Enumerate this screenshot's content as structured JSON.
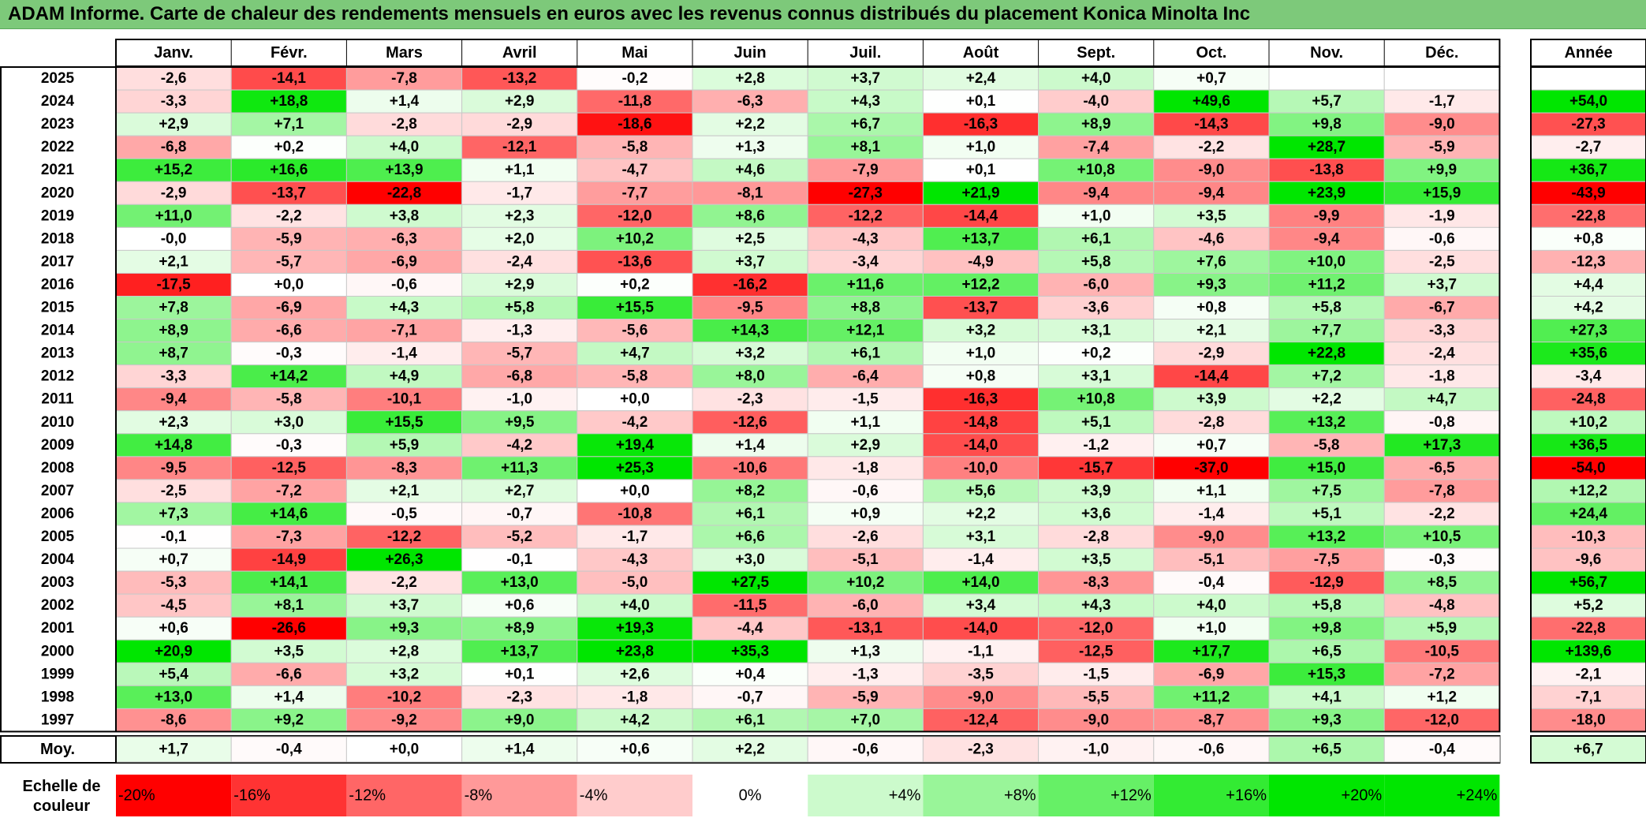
{
  "title": "ADAM Informe. Carte de chaleur des rendements mensuels en euros avec les revenus connus distribués du placement Konica Minolta Inc",
  "chart_data": {
    "type": "heatmap",
    "title": "ADAM Informe. Carte de chaleur des rendements mensuels en euros avec les revenus connus distribués du placement Konica Minolta Inc",
    "months": [
      "Janv.",
      "Févr.",
      "Mars",
      "Avril",
      "Mai",
      "Juin",
      "Juil.",
      "Août",
      "Sept.",
      "Oct.",
      "Nov.",
      "Déc."
    ],
    "year_header": "Année",
    "average_label": "Moy.",
    "rows": [
      {
        "year": "2025",
        "values": [
          "-2,6",
          "-14,1",
          "-7,8",
          "-13,2",
          "-0,2",
          "+2,8",
          "+3,7",
          "+2,4",
          "+4,0",
          "+0,7",
          "",
          ""
        ],
        "annual": ""
      },
      {
        "year": "2024",
        "values": [
          "-3,3",
          "+18,8",
          "+1,4",
          "+2,9",
          "-11,8",
          "-6,3",
          "+4,3",
          "+0,1",
          "-4,0",
          "+49,6",
          "+5,7",
          "-1,7"
        ],
        "annual": "+54,0"
      },
      {
        "year": "2023",
        "values": [
          "+2,9",
          "+7,1",
          "-2,8",
          "-2,9",
          "-18,6",
          "+2,2",
          "+6,7",
          "-16,3",
          "+8,9",
          "-14,3",
          "+9,8",
          "-9,0"
        ],
        "annual": "-27,3"
      },
      {
        "year": "2022",
        "values": [
          "-6,8",
          "+0,2",
          "+4,0",
          "-12,1",
          "-5,8",
          "+1,3",
          "+8,1",
          "+1,0",
          "-7,4",
          "-2,2",
          "+28,7",
          "-5,9"
        ],
        "annual": "-2,7"
      },
      {
        "year": "2021",
        "values": [
          "+15,2",
          "+16,6",
          "+13,9",
          "+1,1",
          "-4,7",
          "+4,6",
          "-7,9",
          "+0,1",
          "+10,8",
          "-9,0",
          "-13,8",
          "+9,9"
        ],
        "annual": "+36,7"
      },
      {
        "year": "2020",
        "values": [
          "-2,9",
          "-13,7",
          "-22,8",
          "-1,7",
          "-7,7",
          "-8,1",
          "-27,3",
          "+21,9",
          "-9,4",
          "-9,4",
          "+23,9",
          "+15,9"
        ],
        "annual": "-43,9"
      },
      {
        "year": "2019",
        "values": [
          "+11,0",
          "-2,2",
          "+3,8",
          "+2,3",
          "-12,0",
          "+8,6",
          "-12,2",
          "-14,4",
          "+1,0",
          "+3,5",
          "-9,9",
          "-1,9"
        ],
        "annual": "-22,8"
      },
      {
        "year": "2018",
        "values": [
          "-0,0",
          "-5,9",
          "-6,3",
          "+2,0",
          "+10,2",
          "+2,5",
          "-4,3",
          "+13,7",
          "+6,1",
          "-4,6",
          "-9,4",
          "-0,6"
        ],
        "annual": "+0,8"
      },
      {
        "year": "2017",
        "values": [
          "+2,1",
          "-5,7",
          "-6,9",
          "-2,4",
          "-13,6",
          "+3,7",
          "-3,4",
          "-4,9",
          "+5,8",
          "+7,6",
          "+10,0",
          "-2,5"
        ],
        "annual": "-12,3"
      },
      {
        "year": "2016",
        "values": [
          "-17,5",
          "+0,0",
          "-0,6",
          "+2,9",
          "+0,2",
          "-16,2",
          "+11,6",
          "+12,2",
          "-6,0",
          "+9,3",
          "+11,2",
          "+3,7"
        ],
        "annual": "+4,4"
      },
      {
        "year": "2015",
        "values": [
          "+7,8",
          "-6,9",
          "+4,3",
          "+5,8",
          "+15,5",
          "-9,5",
          "+8,8",
          "-13,7",
          "-3,6",
          "+0,8",
          "+5,8",
          "-6,7"
        ],
        "annual": "+4,2"
      },
      {
        "year": "2014",
        "values": [
          "+8,9",
          "-6,6",
          "-7,1",
          "-1,3",
          "-5,6",
          "+14,3",
          "+12,1",
          "+3,2",
          "+3,1",
          "+2,1",
          "+7,7",
          "-3,3"
        ],
        "annual": "+27,3"
      },
      {
        "year": "2013",
        "values": [
          "+8,7",
          "-0,3",
          "-1,4",
          "-5,7",
          "+4,7",
          "+3,2",
          "+6,1",
          "+1,0",
          "+0,2",
          "-2,9",
          "+22,8",
          "-2,4"
        ],
        "annual": "+35,6"
      },
      {
        "year": "2012",
        "values": [
          "-3,3",
          "+14,2",
          "+4,9",
          "-6,8",
          "-5,8",
          "+8,0",
          "-6,4",
          "+0,8",
          "+3,1",
          "-14,4",
          "+7,2",
          "-1,8"
        ],
        "annual": "-3,4"
      },
      {
        "year": "2011",
        "values": [
          "-9,4",
          "-5,8",
          "-10,1",
          "-1,0",
          "+0,0",
          "-2,3",
          "-1,5",
          "-16,3",
          "+10,8",
          "+3,9",
          "+2,2",
          "+4,7"
        ],
        "annual": "-24,8"
      },
      {
        "year": "2010",
        "values": [
          "+2,3",
          "+3,0",
          "+15,5",
          "+9,5",
          "-4,2",
          "-12,6",
          "+1,1",
          "-14,8",
          "+5,1",
          "-2,8",
          "+13,2",
          "-0,8"
        ],
        "annual": "+10,2"
      },
      {
        "year": "2009",
        "values": [
          "+14,8",
          "-0,3",
          "+5,9",
          "-4,2",
          "+19,4",
          "+1,4",
          "+2,9",
          "-14,0",
          "-1,2",
          "+0,7",
          "-5,8",
          "+17,3"
        ],
        "annual": "+36,5"
      },
      {
        "year": "2008",
        "values": [
          "-9,5",
          "-12,5",
          "-8,3",
          "+11,3",
          "+25,3",
          "-10,6",
          "-1,8",
          "-10,0",
          "-15,7",
          "-37,0",
          "+15,0",
          "-6,5"
        ],
        "annual": "-54,0"
      },
      {
        "year": "2007",
        "values": [
          "-2,5",
          "-7,2",
          "+2,1",
          "+2,7",
          "+0,0",
          "+8,2",
          "-0,6",
          "+5,6",
          "+3,9",
          "+1,1",
          "+7,5",
          "-7,8"
        ],
        "annual": "+12,2"
      },
      {
        "year": "2006",
        "values": [
          "+7,3",
          "+14,6",
          "-0,5",
          "-0,7",
          "-10,8",
          "+6,1",
          "+0,9",
          "+2,2",
          "+3,6",
          "-1,4",
          "+5,1",
          "-2,2"
        ],
        "annual": "+24,4"
      },
      {
        "year": "2005",
        "values": [
          "-0,1",
          "-7,3",
          "-12,2",
          "-5,2",
          "-1,7",
          "+6,6",
          "-2,6",
          "+3,1",
          "-2,8",
          "-9,0",
          "+13,2",
          "+10,5"
        ],
        "annual": "-10,3"
      },
      {
        "year": "2004",
        "values": [
          "+0,7",
          "-14,9",
          "+26,3",
          "-0,1",
          "-4,3",
          "+3,0",
          "-5,1",
          "-1,4",
          "+3,5",
          "-5,1",
          "-7,5",
          "-0,3"
        ],
        "annual": "-9,6"
      },
      {
        "year": "2003",
        "values": [
          "-5,3",
          "+14,1",
          "-2,2",
          "+13,0",
          "-5,0",
          "+27,5",
          "+10,2",
          "+14,0",
          "-8,3",
          "-0,4",
          "-12,9",
          "+8,5"
        ],
        "annual": "+56,7"
      },
      {
        "year": "2002",
        "values": [
          "-4,5",
          "+8,1",
          "+3,7",
          "+0,6",
          "+4,0",
          "-11,5",
          "-6,0",
          "+3,4",
          "+4,3",
          "+4,0",
          "+5,8",
          "-4,8"
        ],
        "annual": "+5,2"
      },
      {
        "year": "2001",
        "values": [
          "+0,6",
          "-26,6",
          "+9,3",
          "+8,9",
          "+19,3",
          "-4,4",
          "-13,1",
          "-14,0",
          "-12,0",
          "+1,0",
          "+9,8",
          "+5,9"
        ],
        "annual": "-22,8"
      },
      {
        "year": "2000",
        "values": [
          "+20,9",
          "+3,5",
          "+2,8",
          "+13,7",
          "+23,8",
          "+35,3",
          "+1,3",
          "-1,1",
          "-12,5",
          "+17,7",
          "+6,5",
          "-10,5"
        ],
        "annual": "+139,6"
      },
      {
        "year": "1999",
        "values": [
          "+5,4",
          "-6,6",
          "+3,2",
          "+0,1",
          "+2,6",
          "+0,4",
          "-1,3",
          "-3,5",
          "-1,5",
          "-6,9",
          "+15,3",
          "-7,2"
        ],
        "annual": "-2,1"
      },
      {
        "year": "1998",
        "values": [
          "+13,0",
          "+1,4",
          "-10,2",
          "-2,3",
          "-1,8",
          "-0,7",
          "-5,9",
          "-9,0",
          "-5,5",
          "+11,2",
          "+4,1",
          "+1,2"
        ],
        "annual": "-7,1"
      },
      {
        "year": "1997",
        "values": [
          "-8,6",
          "+9,2",
          "-9,2",
          "+9,0",
          "+4,2",
          "+6,1",
          "+7,0",
          "-12,4",
          "-9,0",
          "-8,7",
          "+9,3",
          "-12,0"
        ],
        "annual": "-18,0"
      }
    ],
    "averages": {
      "values": [
        "+1,7",
        "-0,4",
        "+0,0",
        "+1,4",
        "+0,6",
        "+2,2",
        "-0,6",
        "-2,3",
        "-1,0",
        "-0,6",
        "+6,5",
        "-0,4"
      ],
      "annual": "+6,7"
    },
    "scale": {
      "label_line1": "Echelle de",
      "label_line2": "couleur",
      "items": [
        {
          "label": "-20%",
          "value": -20
        },
        {
          "label": "-16%",
          "value": -16
        },
        {
          "label": "-12%",
          "value": -12
        },
        {
          "label": "-8%",
          "value": -8
        },
        {
          "label": "-4%",
          "value": -4
        },
        {
          "label": "0%",
          "value": 0
        },
        {
          "label": "+4%",
          "value": 4
        },
        {
          "label": "+8%",
          "value": 8
        },
        {
          "label": "+12%",
          "value": 12
        },
        {
          "label": "+16%",
          "value": 16
        },
        {
          "label": "+20%",
          "value": 20
        },
        {
          "label": "+24%",
          "value": 24
        }
      ]
    },
    "colors": {
      "negative": "#ff0000",
      "zero": "#ffffff",
      "positive": "#00e600",
      "title_bar": "#7dc97a"
    }
  }
}
